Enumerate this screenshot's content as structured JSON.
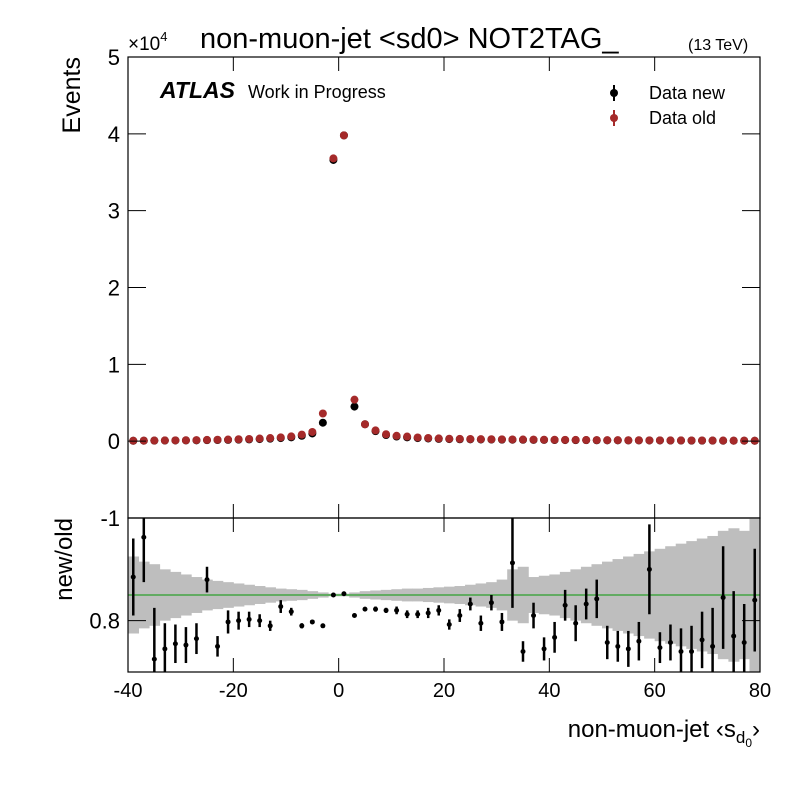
{
  "chart_data": [
    {
      "type": "scatter",
      "title": "non-muon-jet <sd0> NOT2TAG_",
      "subtitle": "(13 TeV)",
      "y_label": "Events",
      "y_multiplier": {
        "base": "×10",
        "exponent": "4"
      },
      "experiment": "ATLAS",
      "status": "Work in Progress",
      "legend": "top-right",
      "xlim": [
        -40,
        80
      ],
      "xticks": [
        -40,
        -20,
        0,
        20,
        40,
        60,
        80
      ],
      "ylim": [
        -1,
        5
      ],
      "yticks": [
        -1,
        0,
        1,
        2,
        3,
        4,
        5
      ],
      "x": [
        -39,
        -37,
        -35,
        -33,
        -31,
        -29,
        -27,
        -25,
        -23,
        -21,
        -19,
        -17,
        -15,
        -13,
        -11,
        -9,
        -7,
        -5,
        -3,
        -1,
        1,
        3,
        5,
        7,
        9,
        11,
        13,
        15,
        17,
        19,
        21,
        23,
        25,
        27,
        29,
        31,
        33,
        35,
        37,
        39,
        41,
        43,
        45,
        47,
        49,
        51,
        53,
        55,
        57,
        59,
        61,
        63,
        65,
        67,
        69,
        71,
        73,
        75,
        77,
        79
      ],
      "series": [
        {
          "name": "Data new",
          "color": "#000000",
          "values": [
            0.005,
            0.006,
            0.007,
            0.008,
            0.009,
            0.01,
            0.011,
            0.013,
            0.015,
            0.017,
            0.02,
            0.023,
            0.027,
            0.033,
            0.04,
            0.05,
            0.07,
            0.1,
            0.24,
            3.66,
            3.98,
            0.45,
            0.22,
            0.13,
            0.08,
            0.06,
            0.05,
            0.04,
            0.035,
            0.03,
            0.027,
            0.025,
            0.024,
            0.022,
            0.021,
            0.02,
            0.019,
            0.018,
            0.017,
            0.016,
            0.015,
            0.014,
            0.013,
            0.013,
            0.012,
            0.011,
            0.011,
            0.01,
            0.01,
            0.009,
            0.009,
            0.008,
            0.008,
            0.007,
            0.007,
            0.007,
            0.006,
            0.006,
            0.006,
            0.005
          ]
        },
        {
          "name": "Data old",
          "color": "#a52a2a",
          "values": [
            0.006,
            0.007,
            0.008,
            0.01,
            0.011,
            0.012,
            0.014,
            0.016,
            0.019,
            0.021,
            0.025,
            0.029,
            0.034,
            0.041,
            0.05,
            0.062,
            0.085,
            0.12,
            0.36,
            3.68,
            3.98,
            0.54,
            0.22,
            0.14,
            0.09,
            0.07,
            0.06,
            0.048,
            0.042,
            0.036,
            0.032,
            0.03,
            0.028,
            0.026,
            0.025,
            0.024,
            0.022,
            0.021,
            0.02,
            0.019,
            0.018,
            0.017,
            0.016,
            0.015,
            0.014,
            0.013,
            0.013,
            0.012,
            0.012,
            0.011,
            0.011,
            0.01,
            0.01,
            0.009,
            0.009,
            0.008,
            0.008,
            0.007,
            0.007,
            0.006
          ]
        }
      ]
    },
    {
      "type": "ratio",
      "y_label": "new/old",
      "x_label": {
        "text": "non-muon-jet ‹s",
        "sub": "d",
        "subsub": "0",
        "end": "›"
      },
      "xlim": [
        -40,
        80
      ],
      "xticks": [
        -40,
        -20,
        0,
        20,
        40,
        60,
        80
      ],
      "ylim": [
        0.4,
        1.6
      ],
      "yticks": [
        0.8
      ],
      "reference": 1,
      "reference_color": "#2ca02c",
      "band_color": "#bebebe",
      "color": "#000000",
      "x": [
        -39,
        -37,
        -35,
        -33,
        -31,
        -29,
        -27,
        -25,
        -23,
        -21,
        -19,
        -17,
        -15,
        -13,
        -11,
        -9,
        -7,
        -5,
        -3,
        -1,
        1,
        3,
        5,
        7,
        9,
        11,
        13,
        15,
        17,
        19,
        21,
        23,
        25,
        27,
        29,
        31,
        33,
        35,
        37,
        39,
        41,
        43,
        45,
        47,
        49,
        51,
        53,
        55,
        57,
        59,
        61,
        63,
        65,
        67,
        69,
        71,
        73,
        75,
        77,
        79
      ],
      "values": [
        1.14,
        1.45,
        0.5,
        0.58,
        0.62,
        0.61,
        0.66,
        1.12,
        0.6,
        0.79,
        0.8,
        0.81,
        0.8,
        0.76,
        0.91,
        0.87,
        0.76,
        0.79,
        0.76,
        1.0,
        1.01,
        0.84,
        0.89,
        0.89,
        0.88,
        0.88,
        0.85,
        0.85,
        0.86,
        0.88,
        0.77,
        0.84,
        0.93,
        0.78,
        0.94,
        0.79,
        1.25,
        0.56,
        0.84,
        0.58,
        0.67,
        0.92,
        0.78,
        0.93,
        0.97,
        0.63,
        0.6,
        0.58,
        0.64,
        1.2,
        0.59,
        0.63,
        0.56,
        0.56,
        0.65,
        0.6,
        0.98,
        0.68,
        0.63,
        0.96
      ],
      "errors": [
        0.3,
        0.35,
        0.4,
        0.2,
        0.15,
        0.14,
        0.12,
        0.1,
        0.08,
        0.09,
        0.07,
        0.06,
        0.05,
        0.04,
        0.05,
        0.03,
        0.02,
        0.015,
        0.01,
        0.005,
        0.005,
        0.01,
        0.015,
        0.02,
        0.02,
        0.03,
        0.03,
        0.03,
        0.04,
        0.04,
        0.04,
        0.05,
        0.05,
        0.06,
        0.06,
        0.07,
        0.35,
        0.08,
        0.1,
        0.09,
        0.12,
        0.12,
        0.14,
        0.12,
        0.15,
        0.13,
        0.12,
        0.14,
        0.15,
        0.35,
        0.12,
        0.14,
        0.18,
        0.2,
        0.22,
        0.3,
        0.4,
        0.35,
        0.3,
        0.4
      ],
      "band": [
        0.3,
        0.26,
        0.24,
        0.2,
        0.18,
        0.16,
        0.14,
        0.12,
        0.11,
        0.1,
        0.09,
        0.08,
        0.07,
        0.06,
        0.05,
        0.045,
        0.04,
        0.03,
        0.02,
        0.01,
        0.01,
        0.02,
        0.03,
        0.035,
        0.04,
        0.045,
        0.05,
        0.05,
        0.055,
        0.06,
        0.065,
        0.07,
        0.08,
        0.09,
        0.1,
        0.12,
        0.2,
        0.22,
        0.14,
        0.15,
        0.16,
        0.18,
        0.2,
        0.22,
        0.24,
        0.26,
        0.28,
        0.3,
        0.32,
        0.34,
        0.36,
        0.38,
        0.4,
        0.42,
        0.44,
        0.46,
        0.5,
        0.52,
        0.5,
        0.6
      ]
    }
  ]
}
